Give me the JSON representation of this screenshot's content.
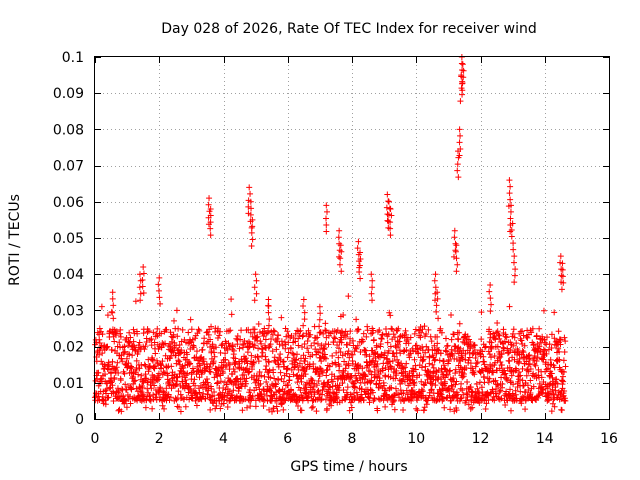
{
  "chart_data": {
    "type": "scatter",
    "title": "Day 028 of 2026, Rate Of TEC Index for receiver wind",
    "xlabel": "GPS time / hours",
    "ylabel": "ROTI / TECUs",
    "xlim": [
      0,
      16
    ],
    "ylim": [
      0,
      0.1
    ],
    "x_ticks": [
      0,
      2,
      4,
      6,
      8,
      10,
      12,
      14,
      16
    ],
    "x_tick_labels": [
      "0",
      "2",
      "4",
      "6",
      "8",
      "10",
      "12",
      "14",
      "16"
    ],
    "y_ticks": [
      0,
      0.01,
      0.02,
      0.03,
      0.04,
      0.05,
      0.06,
      0.07,
      0.08,
      0.09,
      0.1
    ],
    "y_tick_labels": [
      "0",
      "0.01",
      "0.02",
      "0.03",
      "0.04",
      "0.05",
      "0.06",
      "0.07",
      "0.08",
      "0.09",
      "0.1"
    ],
    "grid": true,
    "marker": "plus",
    "color": "#ff0000",
    "x_range_of_data": [
      0,
      14.65
    ],
    "typical_band": [
      0.005,
      0.025
    ],
    "series": [
      {
        "name": "ROTI",
        "x": [
          0.05,
          0.3,
          0.6,
          0.9,
          1.2,
          1.5,
          1.8,
          2.1,
          2.4,
          2.7,
          3.0,
          3.3,
          3.6,
          3.9,
          4.2,
          4.5,
          4.8,
          5.1,
          5.4,
          5.7,
          6.0,
          6.3,
          6.6,
          6.9,
          7.2,
          7.5,
          7.8,
          8.1,
          8.4,
          8.7,
          9.0,
          9.3,
          9.6,
          9.9,
          10.2,
          10.5,
          10.8,
          11.1,
          11.4,
          11.7,
          12.0,
          12.3,
          12.6,
          12.9,
          13.2,
          13.5,
          13.8,
          14.1,
          14.4,
          14.6,
          0.15,
          0.55,
          1.4,
          1.5,
          2.0,
          2.55,
          3.55,
          3.6,
          4.8,
          4.85,
          4.9,
          5.0,
          5.4,
          5.8,
          6.5,
          7.0,
          7.2,
          7.6,
          7.65,
          8.2,
          8.25,
          8.6,
          9.1,
          9.15,
          9.2,
          10.6,
          10.65,
          11.2,
          11.25,
          11.3,
          11.35,
          11.4,
          11.42,
          11.45,
          12.3,
          12.9,
          12.95,
          13.0,
          13.05,
          14.5,
          14.55
        ],
        "y": [
          0.012,
          0.015,
          0.011,
          0.018,
          0.013,
          0.02,
          0.01,
          0.016,
          0.012,
          0.014,
          0.011,
          0.017,
          0.013,
          0.012,
          0.015,
          0.014,
          0.02,
          0.016,
          0.013,
          0.011,
          0.014,
          0.012,
          0.01,
          0.013,
          0.012,
          0.015,
          0.014,
          0.012,
          0.011,
          0.015,
          0.017,
          0.013,
          0.014,
          0.012,
          0.016,
          0.015,
          0.013,
          0.018,
          0.017,
          0.014,
          0.013,
          0.015,
          0.014,
          0.016,
          0.013,
          0.015,
          0.012,
          0.014,
          0.016,
          0.013,
          0.025,
          0.035,
          0.04,
          0.042,
          0.039,
          0.03,
          0.061,
          0.058,
          0.064,
          0.06,
          0.055,
          0.04,
          0.033,
          0.028,
          0.033,
          0.031,
          0.059,
          0.052,
          0.048,
          0.049,
          0.046,
          0.04,
          0.062,
          0.06,
          0.058,
          0.04,
          0.035,
          0.052,
          0.048,
          0.074,
          0.08,
          0.095,
          0.1,
          0.098,
          0.037,
          0.066,
          0.059,
          0.054,
          0.045,
          0.045,
          0.043
        ]
      }
    ]
  }
}
